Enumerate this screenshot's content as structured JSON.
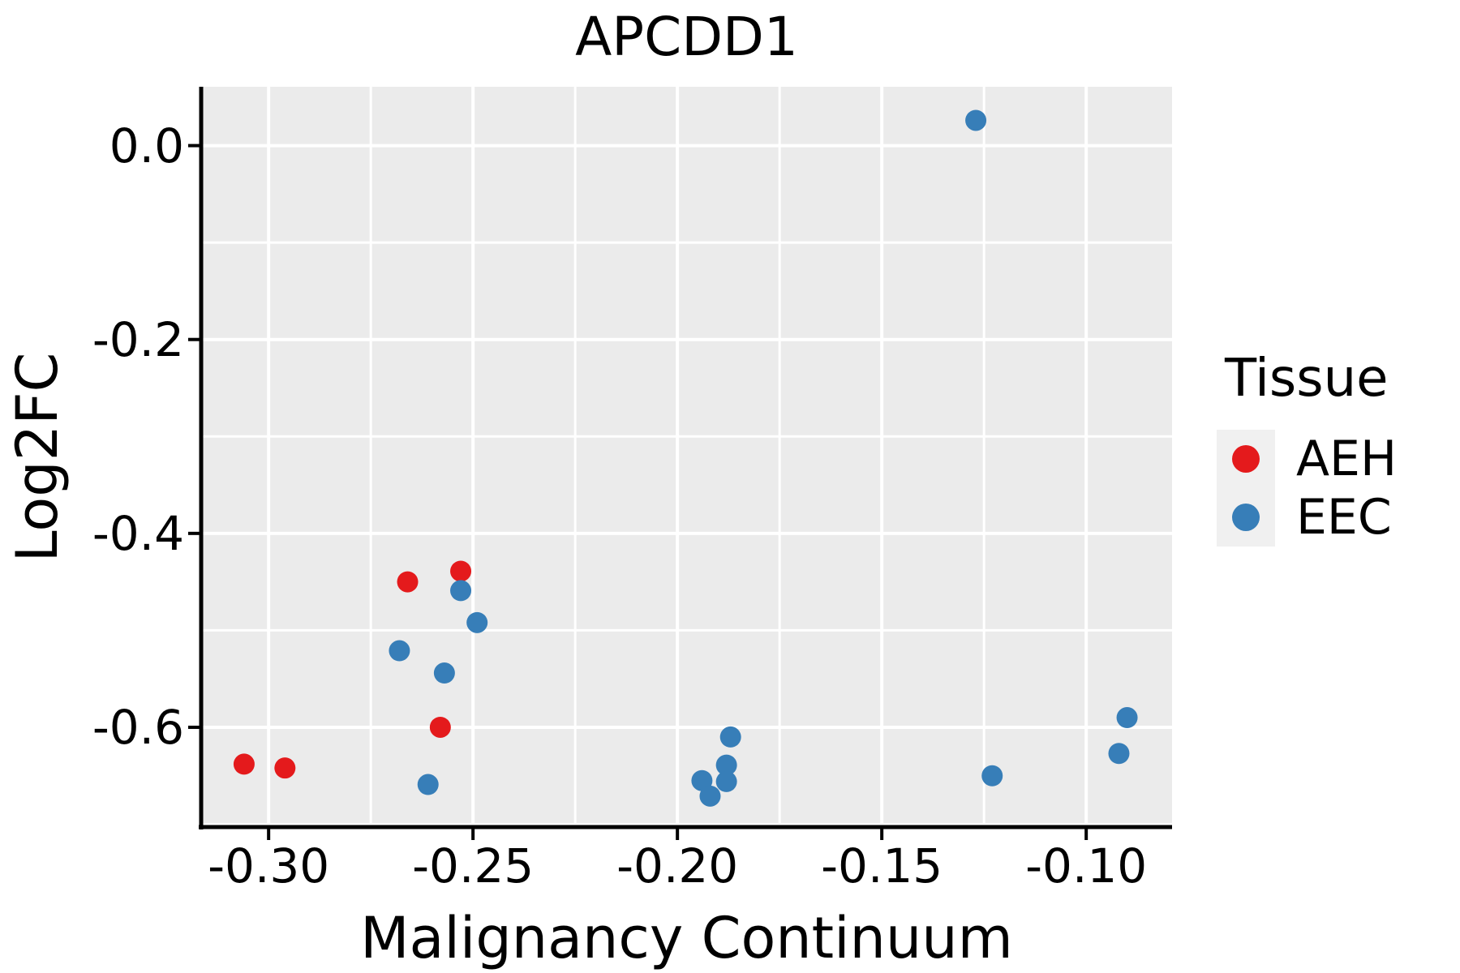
{
  "title": "APCDD1",
  "chart_data": {
    "type": "scatter",
    "title": "APCDD1",
    "xlabel": "Malignancy Continuum",
    "ylabel": "Log2FC",
    "xlim": [
      -0.3165,
      -0.079
    ],
    "ylim": [
      -0.7029,
      0.0607
    ],
    "x_major_ticks": [
      -0.3,
      -0.25,
      -0.2,
      -0.15,
      -0.1
    ],
    "x_tick_labels": [
      "-0.30",
      "-0.25",
      "-0.20",
      "-0.15",
      "-0.10"
    ],
    "x_minor_ticks": [
      -0.275,
      -0.225,
      -0.175,
      -0.125
    ],
    "y_major_ticks": [
      0.0,
      -0.2,
      -0.4,
      -0.6
    ],
    "y_tick_labels": [
      "0.0",
      "-0.2",
      "-0.4",
      "-0.6"
    ],
    "y_minor_ticks": [
      -0.1,
      -0.3,
      -0.5,
      -0.7
    ],
    "grid": "white major and minor gridlines on gray panel",
    "legend_position": "right",
    "point_radius_px": 13,
    "series": [
      {
        "name": "AEH",
        "color": "#E41A1C",
        "points": [
          [
            -0.306,
            -0.638
          ],
          [
            -0.296,
            -0.642
          ],
          [
            -0.266,
            -0.45
          ],
          [
            -0.253,
            -0.439
          ],
          [
            -0.258,
            -0.6
          ]
        ]
      },
      {
        "name": "EEC",
        "color": "#377EB8",
        "points": [
          [
            -0.253,
            -0.459
          ],
          [
            -0.249,
            -0.492
          ],
          [
            -0.268,
            -0.521
          ],
          [
            -0.257,
            -0.544
          ],
          [
            -0.261,
            -0.659
          ],
          [
            -0.187,
            -0.61
          ],
          [
            -0.188,
            -0.639
          ],
          [
            -0.194,
            -0.655
          ],
          [
            -0.188,
            -0.656
          ],
          [
            -0.192,
            -0.671
          ],
          [
            -0.127,
            0.026
          ],
          [
            -0.123,
            -0.65
          ],
          [
            -0.09,
            -0.59
          ],
          [
            -0.092,
            -0.627
          ]
        ]
      }
    ]
  },
  "legend": {
    "title": "Tissue",
    "items": [
      {
        "label": "AEH",
        "color": "#E41A1C"
      },
      {
        "label": "EEC",
        "color": "#377EB8"
      }
    ]
  },
  "colors": {
    "panel_bg": "#EBEBEB",
    "grid": "#FFFFFF",
    "axis_line": "#000000",
    "legend_key_bg": "#F0F0F0",
    "text": "#000000"
  }
}
